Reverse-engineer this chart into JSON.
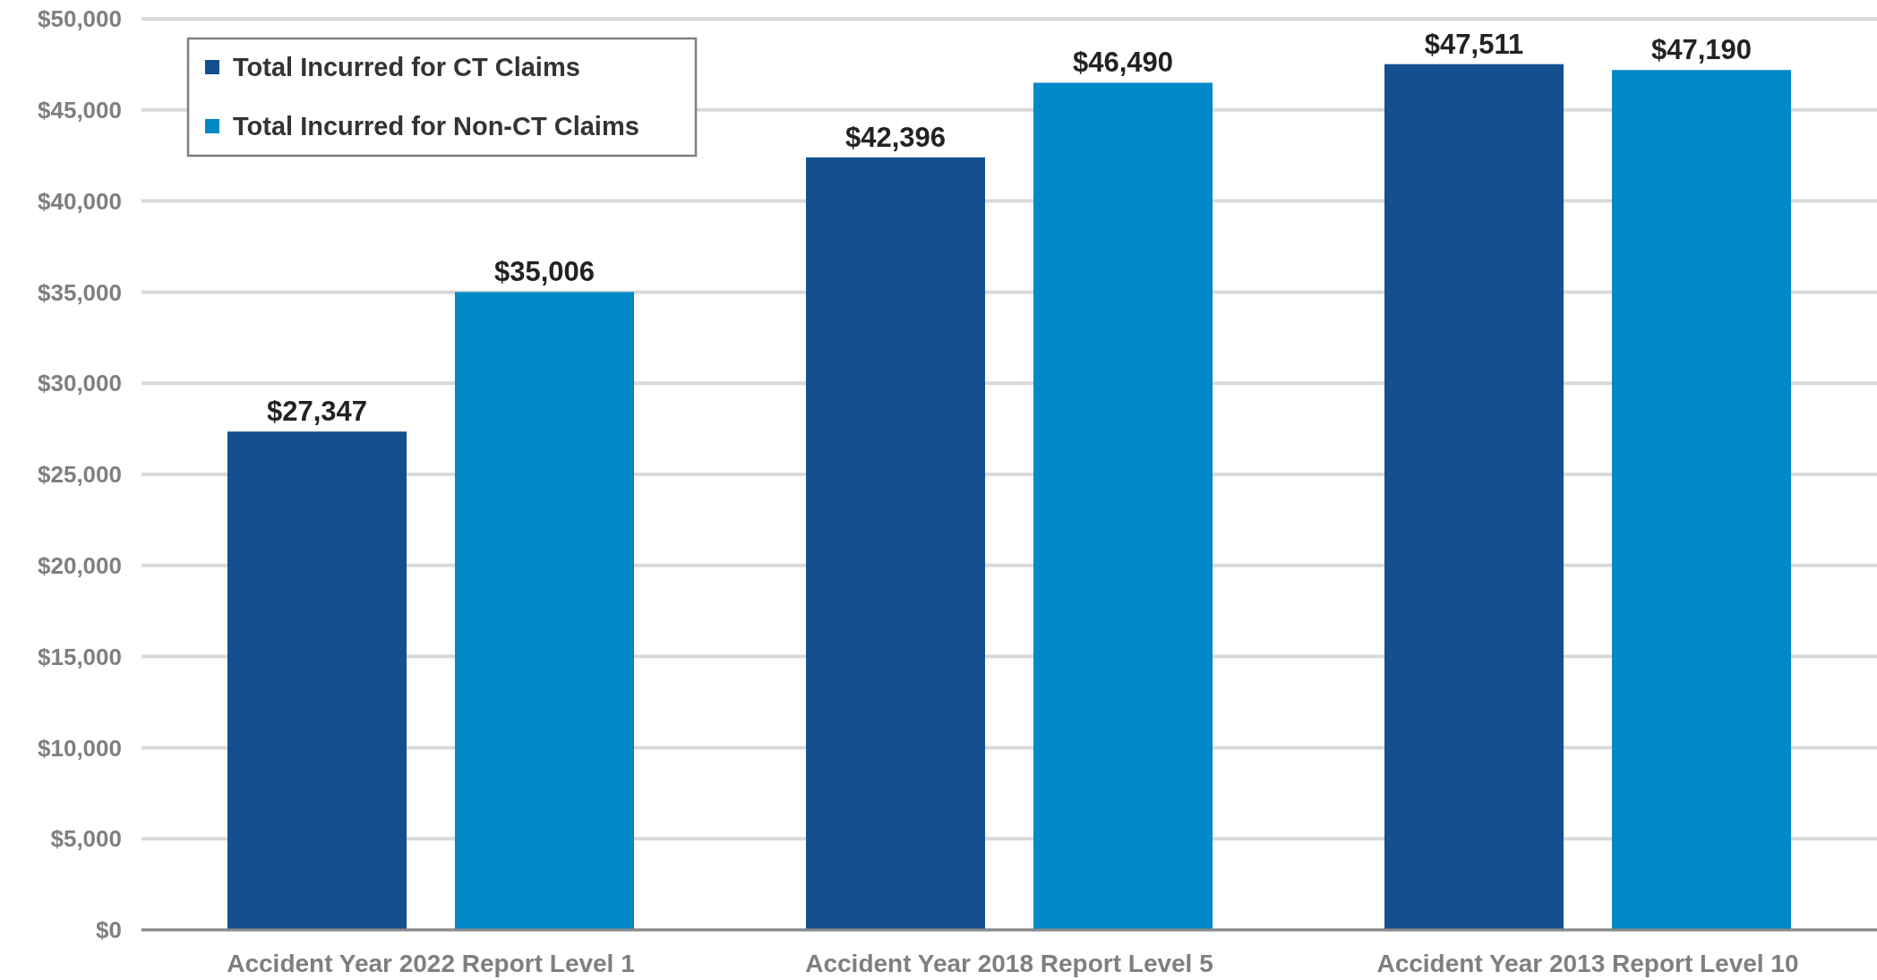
{
  "chart_data": {
    "type": "bar",
    "categories": [
      "Accident Year 2022 Report Level 1",
      "Accident Year 2018 Report Level 5",
      "Accident Year 2013 Report Level 10"
    ],
    "series": [
      {
        "name": "Total Incurred for CT Claims",
        "color": "#144f8f",
        "values": [
          27347,
          42396,
          47511
        ]
      },
      {
        "name": "Total Incurred for Non-CT Claims",
        "color": "#0088c7",
        "values": [
          35006,
          46490,
          47190
        ]
      }
    ],
    "ylim": [
      0,
      50000
    ],
    "yticks": [
      {
        "value": 0,
        "label": "$0"
      },
      {
        "value": 5000,
        "label": "$5,000"
      },
      {
        "value": 10000,
        "label": "$10,000"
      },
      {
        "value": 15000,
        "label": "$15,000"
      },
      {
        "value": 20000,
        "label": "$20,000"
      },
      {
        "value": 25000,
        "label": "$25,000"
      },
      {
        "value": 30000,
        "label": "$30,000"
      },
      {
        "value": 35000,
        "label": "$35,000"
      },
      {
        "value": 40000,
        "label": "$40,000"
      },
      {
        "value": 45000,
        "label": "$45,000"
      },
      {
        "value": 50000,
        "label": "$50,000"
      }
    ],
    "value_labels": [
      [
        "$27,347",
        "$42,396",
        "$47,511"
      ],
      [
        "$35,006",
        "$46,490",
        "$47,190"
      ]
    ],
    "grid": "y",
    "legend": "top left"
  }
}
